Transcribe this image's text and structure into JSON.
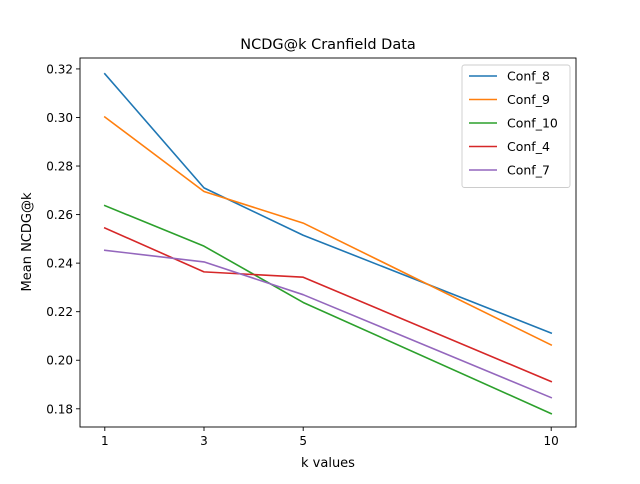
{
  "chart_data": {
    "type": "line",
    "title": "NCDG@k Cranfield Data",
    "xlabel": "k values",
    "ylabel": "Mean NCDG@k",
    "x": [
      1,
      3,
      5,
      10
    ],
    "xticks": [
      "1",
      "3",
      "5",
      "10"
    ],
    "xlim": [
      0.5,
      10.5
    ],
    "ylim": [
      0.1725,
      0.3245
    ],
    "yticks": [
      "0.18",
      "0.20",
      "0.22",
      "0.24",
      "0.26",
      "0.28",
      "0.30",
      "0.32"
    ],
    "ytick_values": [
      0.18,
      0.2,
      0.22,
      0.24,
      0.26,
      0.28,
      0.3,
      0.32
    ],
    "grid": false,
    "legend_position": "top-right",
    "series": [
      {
        "name": "Conf_8",
        "color": "#1f77b4",
        "values": [
          0.318,
          0.271,
          0.2515,
          0.2112
        ]
      },
      {
        "name": "Conf_9",
        "color": "#ff7f0e",
        "values": [
          0.3002,
          0.2695,
          0.2565,
          0.2063
        ]
      },
      {
        "name": "Conf_10",
        "color": "#2ca02c",
        "values": [
          0.2637,
          0.247,
          0.2238,
          0.178
        ]
      },
      {
        "name": "Conf_4",
        "color": "#d62728",
        "values": [
          0.2545,
          0.2364,
          0.2342,
          0.1912
        ]
      },
      {
        "name": "Conf_7",
        "color": "#9467bd",
        "values": [
          0.2453,
          0.2405,
          0.227,
          0.1846
        ]
      }
    ]
  }
}
